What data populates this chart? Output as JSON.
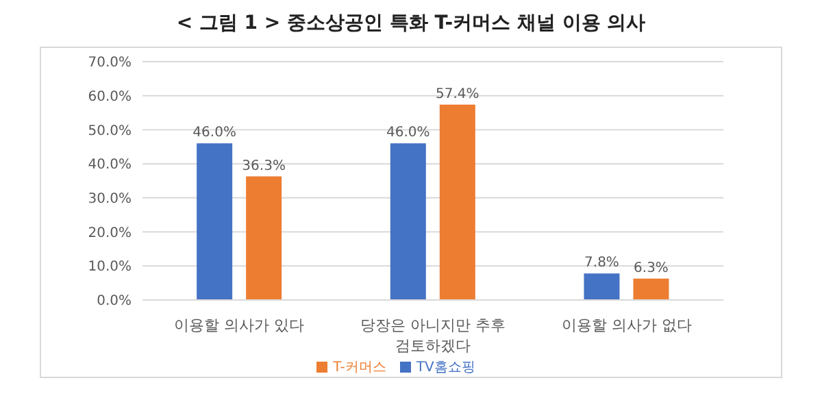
{
  "chart_data": {
    "type": "bar",
    "title": "< 그림 1 > 중소상공인 특화 T-커머스 채널 이용 의사",
    "categories": [
      "이용할 의사가 있다",
      "당장은 아니지만 추후 검토하겠다",
      "이용할 의사가 없다"
    ],
    "series": [
      {
        "name": "TV홈쇼핑",
        "color": "#4472c4",
        "values": [
          46.0,
          46.0,
          7.8
        ],
        "value_labels": [
          "46.0%",
          "46.0%",
          "7.8%"
        ]
      },
      {
        "name": "T-커머스",
        "color": "#ed7d31",
        "values": [
          36.3,
          57.4,
          6.3
        ],
        "value_labels": [
          "36.3%",
          "57.4%",
          "6.3%"
        ]
      }
    ],
    "ylim": [
      0,
      70
    ],
    "yticks": [
      {
        "value": 0,
        "label": "0.0%"
      },
      {
        "value": 10,
        "label": "10.0%"
      },
      {
        "value": 20,
        "label": "20.0%"
      },
      {
        "value": 30,
        "label": "30.0%"
      },
      {
        "value": 40,
        "label": "40.0%"
      },
      {
        "value": 50,
        "label": "50.0%"
      },
      {
        "value": 60,
        "label": "60.0%"
      },
      {
        "value": 70,
        "label": "70.0%"
      }
    ],
    "grid": "y",
    "legend": "bottom"
  }
}
